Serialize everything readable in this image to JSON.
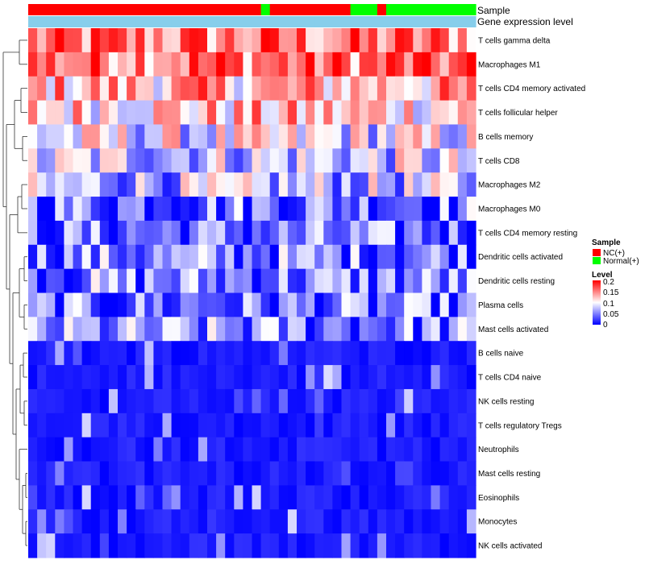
{
  "chart_data": {
    "type": "heatmap",
    "annotation_tracks": {
      "sample_label": "Sample",
      "level_label": "Gene expression level"
    },
    "sample_groups": [
      "NC",
      "NC",
      "NC",
      "NC",
      "NC",
      "NC",
      "NC",
      "NC",
      "NC",
      "NC",
      "NC",
      "NC",
      "NC",
      "NC",
      "NC",
      "NC",
      "NC",
      "NC",
      "NC",
      "NC",
      "NC",
      "NC",
      "NC",
      "NC",
      "NC",
      "NC",
      "Normal",
      "NC",
      "NC",
      "NC",
      "NC",
      "NC",
      "NC",
      "NC",
      "NC",
      "NC",
      "Normal",
      "Normal",
      "Normal",
      "NC",
      "Normal",
      "Normal",
      "Normal",
      "Normal",
      "Normal",
      "Normal",
      "Normal",
      "Normal",
      "Normal",
      "Normal"
    ],
    "rows": [
      "T cells gamma delta",
      "Macrophages M1",
      "T cells CD4 memory activated",
      "T cells follicular helper",
      "B cells memory",
      "T cells CD8",
      "Macrophages M2",
      "Macrophages M0",
      "T cells CD4 memory resting",
      "Dendritic cells activated",
      "Dendritic cells resting",
      "Plasma cells",
      "Mast cells activated",
      "B cells naive",
      "T cells CD4 naive",
      "NK cells resting",
      "T cells regulatory  Tregs",
      "Neutrophils",
      "Mast cells resting",
      "Eosinophils",
      "Monocytes",
      "NK cells activated"
    ],
    "row_means": [
      0.15,
      0.16,
      0.13,
      0.12,
      0.09,
      0.08,
      0.07,
      0.05,
      0.04,
      0.05,
      0.05,
      0.04,
      0.05,
      0.02,
      0.02,
      0.02,
      0.02,
      0.02,
      0.01,
      0.01,
      0.005,
      0.01
    ],
    "color_scale": {
      "min": 0,
      "mid": 0.1,
      "max": 0.2,
      "low_color": "#0000ff",
      "mid_color": "#ffffff",
      "high_color": "#ff0000"
    },
    "legend": {
      "sample_title": "Sample",
      "sample_entries": [
        {
          "label": "NC(+)",
          "color": "#ff0000"
        },
        {
          "label": "Normal(+)",
          "color": "#00ff00"
        }
      ],
      "level_title": "Level",
      "level_ticks": [
        "0.2",
        "0.15",
        "0.1",
        "0.05",
        "0"
      ]
    }
  }
}
